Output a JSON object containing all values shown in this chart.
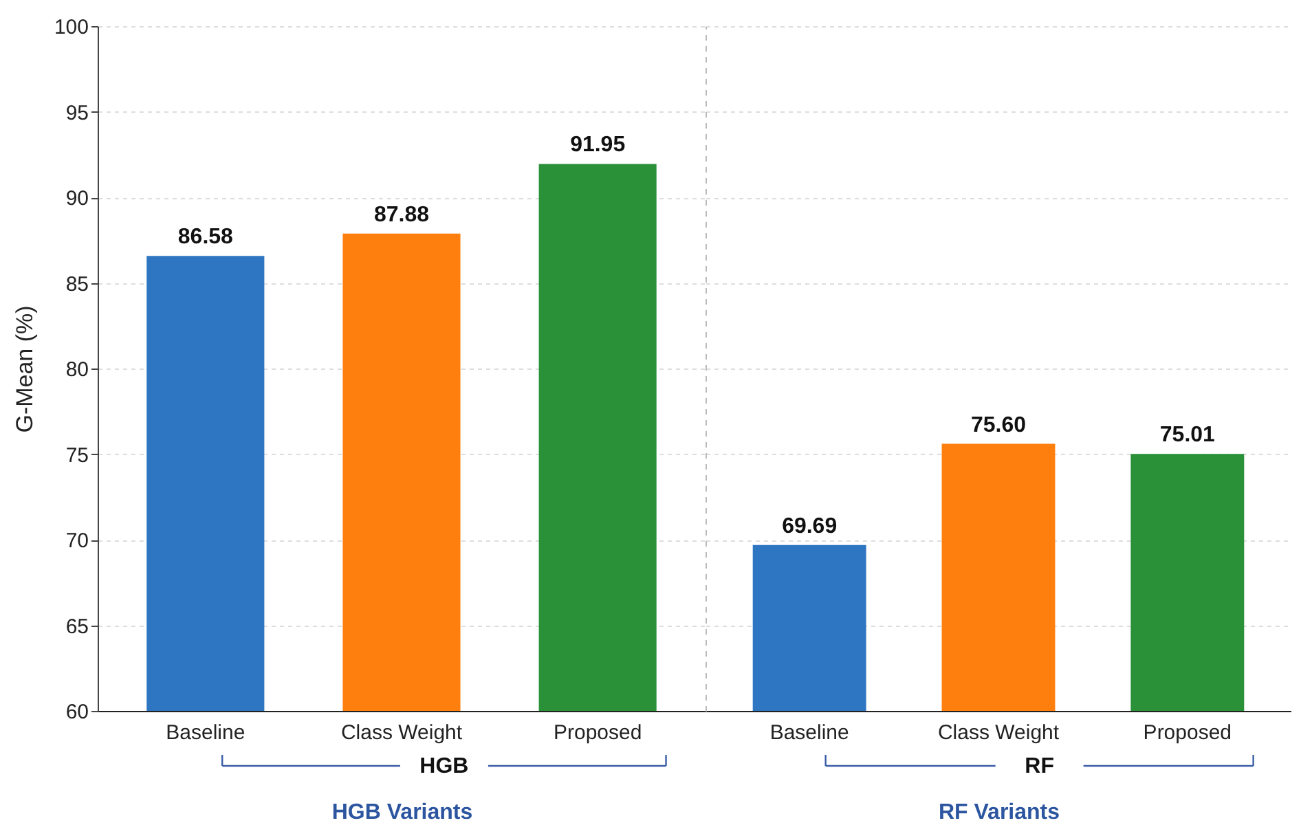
{
  "chart_data": [
    {
      "type": "bar",
      "categories": [
        "Baseline",
        "Class Weight",
        "Proposed"
      ],
      "values": [
        86.58,
        87.88,
        91.95
      ],
      "colors": [
        "#2e75c2",
        "#ff7f0e",
        "#2a9139"
      ],
      "value_labels": [
        "86.58",
        "87.88",
        "91.95"
      ],
      "ylim": [
        60,
        100
      ],
      "yticks": [
        60,
        65,
        70,
        75,
        80,
        85,
        90,
        95,
        100
      ],
      "ylabel": "G-Mean (%)",
      "xlabel": "HGB Variants",
      "annotations": [
        "HGB"
      ],
      "grid": "y"
    },
    {
      "type": "bar",
      "categories": [
        "Baseline",
        "Class Weight",
        "Proposed"
      ],
      "values": [
        69.69,
        75.6,
        75.01
      ],
      "colors": [
        "#2e75c2",
        "#ff7f0e",
        "#2a9139"
      ],
      "value_labels": [
        "69.69",
        "75.60",
        "75.01"
      ],
      "ylim": [
        60,
        100
      ],
      "yticks": [
        60,
        65,
        70,
        75,
        80,
        85,
        90,
        95,
        100
      ],
      "xlabel": "RF Variants",
      "annotations": [
        "RF"
      ],
      "grid": "y",
      "tick_labels": "x"
    }
  ]
}
